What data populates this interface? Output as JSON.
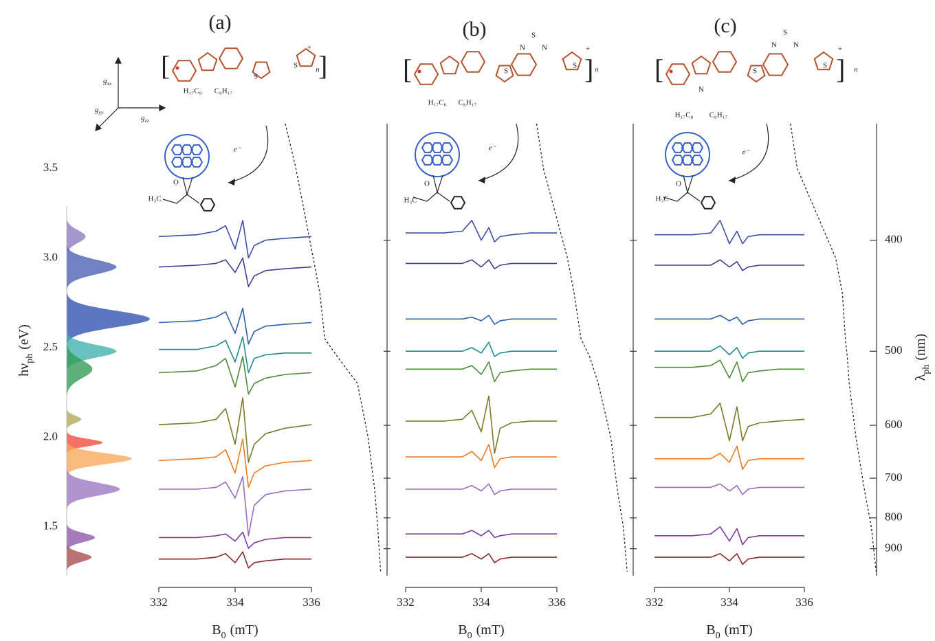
{
  "chart_data": [
    {
      "type": "area",
      "ylabel": {
        "main": "hν",
        "sub": "ph",
        "unit": "(eV)"
      },
      "ylim": [
        1.2,
        3.75
      ],
      "yticks": [
        1.5,
        {
          "value": 2,
          "label": "2.0"
        },
        2.5,
        {
          "value": 3,
          "label": "3.0"
        },
        3.5
      ],
      "xlim": [
        0,
        1
      ],
      "frame_labels": [
        {
          "main": "g",
          "sub": "xx"
        },
        {
          "main": "g",
          "sub": "yy"
        },
        {
          "main": "g",
          "sub": "zz"
        }
      ],
      "peaks": [
        {
          "center": 3.12,
          "height": 0.22,
          "width": 0.035,
          "color": "#8b78c2"
        },
        {
          "center": 2.95,
          "height": 0.58,
          "width": 0.04,
          "color": "#4a5db3"
        },
        {
          "center": 2.66,
          "height": 0.97,
          "width": 0.045,
          "color": "#2f4fb0"
        },
        {
          "center": 2.48,
          "height": 0.58,
          "width": 0.035,
          "color": "#3fb1ac"
        },
        {
          "center": 2.38,
          "height": 0.3,
          "width": 0.05,
          "color": "#2f9a55"
        },
        {
          "center": 2.1,
          "height": 0.17,
          "width": 0.02,
          "color": "#b0a85a"
        },
        {
          "center": 1.97,
          "height": 0.42,
          "width": 0.02,
          "color": "#f04a3a"
        },
        {
          "center": 1.88,
          "height": 0.76,
          "width": 0.03,
          "color": "#f9a95a"
        },
        {
          "center": 1.71,
          "height": 0.62,
          "width": 0.035,
          "color": "#9b74c2"
        },
        {
          "center": 1.44,
          "height": 0.33,
          "width": 0.025,
          "color": "#8a56a8"
        },
        {
          "center": 1.33,
          "height": 0.29,
          "width": 0.025,
          "color": "#a64a4a"
        }
      ]
    },
    {
      "type": "line",
      "title": "(a)",
      "xlabel": {
        "main": "B",
        "sub": "0",
        "unit": "(mT)"
      },
      "xlim": [
        332,
        336
      ],
      "xticks": [
        332,
        334,
        336
      ],
      "x": [
        332,
        333,
        333.5,
        333.75,
        334,
        334.2,
        334.35,
        334.5,
        334.8,
        335.3,
        336
      ],
      "annotations": [
        "H₁₇C₈",
        "C₈H₁₇",
        "n",
        "S",
        "S",
        "+",
        "e⁻",
        "H₃C",
        "O"
      ],
      "absorption": {
        "energy": [
          3.75,
          3.5,
          3.0,
          2.8,
          2.55,
          2.45,
          2.3,
          2.0,
          1.7,
          1.5,
          1.25
        ],
        "values": [
          1.0,
          0.89,
          0.71,
          0.64,
          0.59,
          0.46,
          0.25,
          0.14,
          0.07,
          0.04,
          0.01
        ]
      },
      "series": [
        {
          "color": "#3b4fa8",
          "values": [
            3.12,
            3.13,
            3.15,
            3.18,
            3.05,
            3.21,
            3.0,
            3.07,
            3.1,
            3.11,
            3.12
          ]
        },
        {
          "color": "#3d3f95",
          "values": [
            2.95,
            2.96,
            2.97,
            2.99,
            2.92,
            3.0,
            2.84,
            2.9,
            2.93,
            2.94,
            2.95
          ]
        },
        {
          "color": "#2b5fae",
          "values": [
            2.64,
            2.65,
            2.67,
            2.7,
            2.58,
            2.72,
            2.52,
            2.59,
            2.62,
            2.63,
            2.64
          ]
        },
        {
          "color": "#1f8a8a",
          "values": [
            2.49,
            2.49,
            2.51,
            2.54,
            2.42,
            2.56,
            2.36,
            2.44,
            2.46,
            2.47,
            2.47
          ]
        },
        {
          "color": "#4e8a3a",
          "values": [
            2.36,
            2.37,
            2.4,
            2.44,
            2.28,
            2.45,
            2.24,
            2.3,
            2.33,
            2.35,
            2.36
          ]
        },
        {
          "color": "#7a7a2a",
          "values": [
            2.07,
            2.08,
            2.1,
            2.16,
            1.96,
            2.22,
            1.86,
            1.96,
            2.02,
            2.05,
            2.07
          ]
        },
        {
          "color": "#f07a20",
          "values": [
            1.87,
            1.88,
            1.89,
            1.93,
            1.8,
            1.99,
            1.72,
            1.8,
            1.84,
            1.86,
            1.87
          ]
        },
        {
          "color": "#9a6ac0",
          "values": [
            1.71,
            1.71,
            1.72,
            1.75,
            1.66,
            1.78,
            1.45,
            1.62,
            1.68,
            1.7,
            1.71
          ]
        },
        {
          "color": "#7a3aa0",
          "values": [
            1.44,
            1.44,
            1.45,
            1.46,
            1.42,
            1.47,
            1.38,
            1.41,
            1.43,
            1.44,
            1.44
          ]
        },
        {
          "color": "#8a2a2a",
          "values": [
            1.32,
            1.32,
            1.33,
            1.35,
            1.3,
            1.36,
            1.27,
            1.3,
            1.31,
            1.32,
            1.32
          ]
        }
      ]
    },
    {
      "type": "line",
      "title": "(b)",
      "xlabel": {
        "main": "B",
        "sub": "0",
        "unit": "(mT)"
      },
      "xlim": [
        332,
        336
      ],
      "xticks": [
        332,
        334,
        336
      ],
      "x": [
        332,
        333,
        333.5,
        333.75,
        334,
        334.2,
        334.35,
        334.5,
        334.8,
        335.3,
        336
      ],
      "annotations": [
        "H₁₇C₈",
        "C₈H₁₇",
        "n",
        "S",
        "S",
        "N",
        "S",
        "N",
        "+",
        "e⁻",
        "H₃C",
        "O"
      ],
      "absorption": {
        "energy": [
          3.75,
          3.5,
          3.0,
          2.8,
          2.55,
          2.45,
          2.3,
          2.0,
          1.7,
          1.5,
          1.25
        ],
        "values": [
          0.96,
          0.89,
          0.64,
          0.57,
          0.5,
          0.41,
          0.32,
          0.19,
          0.12,
          0.06,
          0.02
        ]
      },
      "series": [
        {
          "color": "#3b4fa8",
          "values": [
            3.14,
            3.14,
            3.15,
            3.21,
            3.1,
            3.17,
            3.09,
            3.12,
            3.13,
            3.14,
            3.14
          ]
        },
        {
          "color": "#3d3f95",
          "values": [
            2.97,
            2.97,
            2.97,
            2.99,
            2.95,
            2.99,
            2.94,
            2.96,
            2.97,
            2.97,
            2.97
          ]
        },
        {
          "color": "#2b5fae",
          "values": [
            2.66,
            2.66,
            2.66,
            2.67,
            2.65,
            2.68,
            2.63,
            2.65,
            2.66,
            2.66,
            2.66
          ]
        },
        {
          "color": "#1f8a8a",
          "values": [
            2.48,
            2.48,
            2.48,
            2.5,
            2.47,
            2.53,
            2.45,
            2.47,
            2.48,
            2.48,
            2.48
          ]
        },
        {
          "color": "#4e8a3a",
          "values": [
            2.38,
            2.38,
            2.38,
            2.4,
            2.35,
            2.42,
            2.31,
            2.36,
            2.37,
            2.38,
            2.38
          ]
        },
        {
          "color": "#7a7a2a",
          "values": [
            2.09,
            2.09,
            2.1,
            2.15,
            2.03,
            2.23,
            1.91,
            2.05,
            2.08,
            2.09,
            2.09
          ]
        },
        {
          "color": "#f07a20",
          "values": [
            1.89,
            1.89,
            1.89,
            1.92,
            1.87,
            1.96,
            1.83,
            1.88,
            1.89,
            1.89,
            1.89
          ]
        },
        {
          "color": "#9a6ac0",
          "values": [
            1.71,
            1.71,
            1.71,
            1.73,
            1.7,
            1.74,
            1.68,
            1.7,
            1.71,
            1.71,
            1.71
          ]
        },
        {
          "color": "#7a3aa0",
          "values": [
            1.46,
            1.46,
            1.46,
            1.48,
            1.45,
            1.48,
            1.44,
            1.45,
            1.46,
            1.46,
            1.46
          ]
        },
        {
          "color": "#8a2a2a",
          "values": [
            1.33,
            1.33,
            1.33,
            1.35,
            1.32,
            1.35,
            1.3,
            1.32,
            1.33,
            1.33,
            1.33
          ]
        }
      ]
    },
    {
      "type": "line",
      "title": "(c)",
      "xlabel": {
        "main": "B",
        "sub": "0",
        "unit": "(mT)"
      },
      "xlim": [
        332,
        336
      ],
      "xticks": [
        332,
        334,
        336
      ],
      "x": [
        332,
        333,
        333.5,
        333.75,
        334,
        334.2,
        334.35,
        334.5,
        334.8,
        335.3,
        336
      ],
      "annotations": [
        "N",
        "H₁₇C₈",
        "C₈H₁₇",
        "n",
        "S",
        "S",
        "N",
        "S",
        "N",
        "+",
        "e⁻",
        "H₃C",
        "O"
      ],
      "y2label": {
        "main": "λ",
        "sub": "ph",
        "unit": "(nm)"
      },
      "y2ticks": [
        400,
        500,
        600,
        700,
        800,
        900
      ],
      "absorption": {
        "energy": [
          3.75,
          3.5,
          3.0,
          2.8,
          2.55,
          2.45,
          2.3,
          2.0,
          1.7,
          1.5,
          1.25
        ],
        "values": [
          0.93,
          0.86,
          0.46,
          0.39,
          0.36,
          0.34,
          0.32,
          0.25,
          0.16,
          0.09,
          0.04
        ]
      },
      "series": [
        {
          "color": "#3b4fa8",
          "values": [
            3.13,
            3.13,
            3.14,
            3.21,
            3.08,
            3.15,
            3.08,
            3.12,
            3.13,
            3.13,
            3.13
          ]
        },
        {
          "color": "#3d3f95",
          "values": [
            2.96,
            2.96,
            2.96,
            2.99,
            2.95,
            2.98,
            2.93,
            2.95,
            2.96,
            2.96,
            2.96
          ]
        },
        {
          "color": "#2b5fae",
          "values": [
            2.66,
            2.66,
            2.66,
            2.68,
            2.65,
            2.67,
            2.63,
            2.65,
            2.66,
            2.66,
            2.66
          ]
        },
        {
          "color": "#1f8a8a",
          "values": [
            2.48,
            2.48,
            2.48,
            2.51,
            2.46,
            2.5,
            2.44,
            2.47,
            2.48,
            2.48,
            2.48
          ]
        },
        {
          "color": "#4e8a3a",
          "values": [
            2.39,
            2.39,
            2.4,
            2.43,
            2.33,
            2.42,
            2.31,
            2.36,
            2.37,
            2.38,
            2.38
          ]
        },
        {
          "color": "#7a7a2a",
          "values": [
            2.11,
            2.11,
            2.13,
            2.19,
            1.98,
            2.17,
            1.98,
            2.06,
            2.08,
            2.09,
            2.1
          ]
        },
        {
          "color": "#f07a20",
          "values": [
            1.88,
            1.88,
            1.88,
            1.91,
            1.86,
            1.95,
            1.82,
            1.87,
            1.88,
            1.88,
            1.88
          ]
        },
        {
          "color": "#9a6ac0",
          "values": [
            1.72,
            1.72,
            1.72,
            1.74,
            1.7,
            1.73,
            1.68,
            1.71,
            1.72,
            1.72,
            1.72
          ]
        },
        {
          "color": "#7a3aa0",
          "values": [
            1.45,
            1.45,
            1.46,
            1.5,
            1.42,
            1.49,
            1.4,
            1.44,
            1.45,
            1.45,
            1.45
          ]
        },
        {
          "color": "#8a2a2a",
          "values": [
            1.33,
            1.33,
            1.33,
            1.35,
            1.31,
            1.35,
            1.29,
            1.32,
            1.33,
            1.33,
            1.33
          ]
        }
      ]
    }
  ]
}
